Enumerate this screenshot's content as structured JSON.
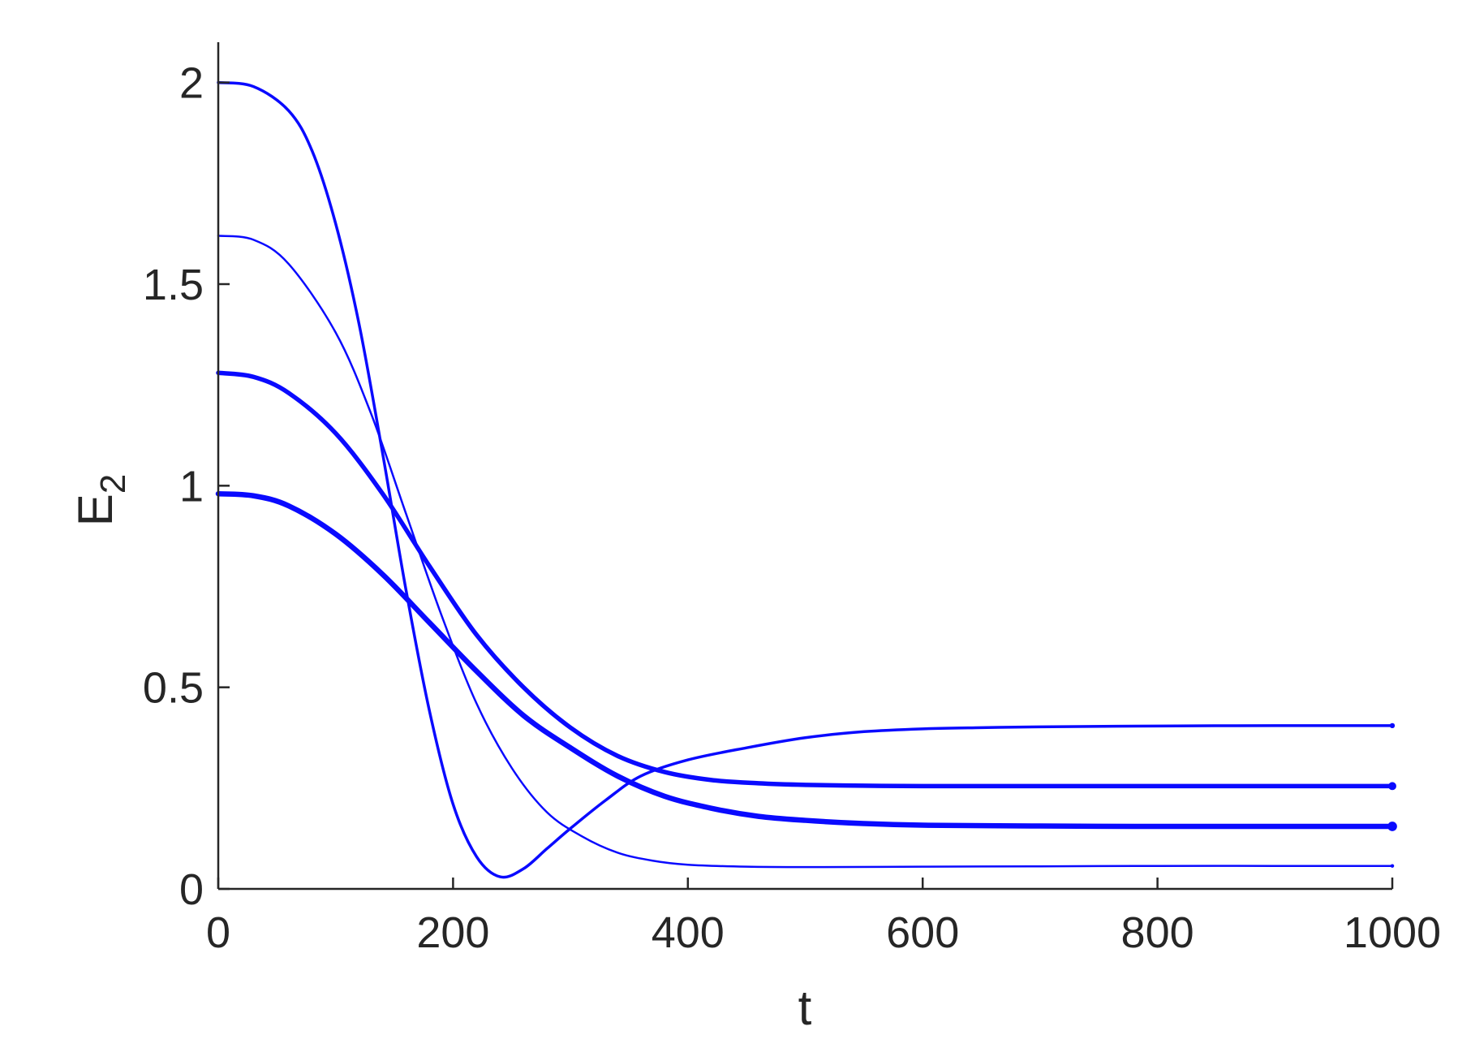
{
  "chart_data": {
    "type": "line",
    "xlabel": "t",
    "ylabel": {
      "main": "E",
      "subscript": "2"
    },
    "xlim": [
      0,
      1000
    ],
    "ylim": [
      0,
      2.1
    ],
    "xticks": [
      0,
      200,
      400,
      600,
      800,
      1000
    ],
    "yticks": [
      0,
      0.5,
      1,
      1.5,
      2
    ],
    "xtick_labels": [
      "0",
      "200",
      "400",
      "600",
      "800",
      "1000"
    ],
    "ytick_labels": [
      "0",
      "0.5",
      "1",
      "1.5",
      "2"
    ],
    "grid": false,
    "legend": "none",
    "color": "#0a0aff",
    "series": [
      {
        "x": [
          0,
          30,
          60,
          80,
          100,
          120,
          140,
          160,
          180,
          200,
          220,
          240,
          260,
          280,
          300,
          330,
          360,
          400,
          450,
          500,
          550,
          600,
          650,
          700,
          800,
          900,
          1000
        ],
        "values": [
          2.0,
          1.99,
          1.93,
          1.83,
          1.65,
          1.4,
          1.08,
          0.74,
          0.44,
          0.21,
          0.08,
          0.03,
          0.05,
          0.1,
          0.15,
          0.22,
          0.28,
          0.32,
          0.35,
          0.375,
          0.39,
          0.397,
          0.4,
          0.402,
          0.404,
          0.405,
          0.405
        ]
      },
      {
        "x": [
          0,
          30,
          60,
          100,
          130,
          160,
          190,
          220,
          250,
          280,
          310,
          340,
          370,
          400,
          450,
          500,
          600,
          700,
          800,
          900,
          1000
        ],
        "values": [
          1.62,
          1.61,
          1.55,
          1.38,
          1.18,
          0.93,
          0.68,
          0.46,
          0.3,
          0.19,
          0.13,
          0.09,
          0.07,
          0.06,
          0.055,
          0.054,
          0.055,
          0.056,
          0.057,
          0.057,
          0.057
        ]
      },
      {
        "x": [
          0,
          30,
          60,
          100,
          140,
          180,
          220,
          260,
          300,
          340,
          380,
          420,
          460,
          500,
          550,
          600,
          700,
          800,
          900,
          1000
        ],
        "values": [
          1.28,
          1.27,
          1.23,
          1.13,
          0.98,
          0.8,
          0.63,
          0.5,
          0.4,
          0.33,
          0.29,
          0.27,
          0.262,
          0.258,
          0.256,
          0.255,
          0.255,
          0.255,
          0.255,
          0.255
        ]
      },
      {
        "x": [
          0,
          30,
          60,
          100,
          140,
          180,
          220,
          260,
          300,
          340,
          380,
          420,
          460,
          500,
          550,
          600,
          700,
          800,
          900,
          1000
        ],
        "values": [
          0.98,
          0.975,
          0.95,
          0.88,
          0.78,
          0.66,
          0.54,
          0.43,
          0.35,
          0.28,
          0.23,
          0.2,
          0.18,
          0.17,
          0.162,
          0.158,
          0.156,
          0.155,
          0.155,
          0.155
        ]
      }
    ]
  }
}
